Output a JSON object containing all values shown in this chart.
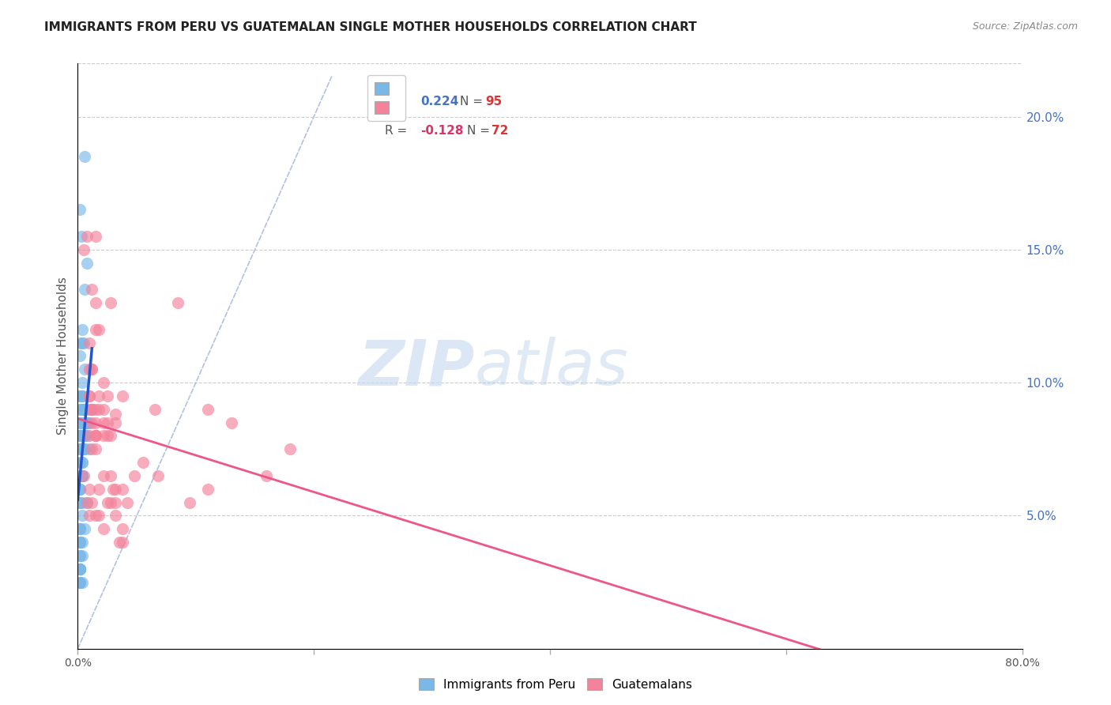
{
  "title": "IMMIGRANTS FROM PERU VS GUATEMALAN SINGLE MOTHER HOUSEHOLDS CORRELATION CHART",
  "source": "Source: ZipAtlas.com",
  "ylabel": "Single Mother Households",
  "right_ytick_vals": [
    0.05,
    0.1,
    0.15,
    0.2
  ],
  "peru_color": "#7ab8e8",
  "guatemala_color": "#f4829a",
  "peru_line_color": "#2255cc",
  "guatemala_line_color": "#ee5588",
  "diag_line_color": "#aabbdd",
  "watermark_zip": "ZIP",
  "watermark_atlas": "atlas",
  "xlim": [
    0.0,
    0.8
  ],
  "ylim": [
    0.0,
    0.22
  ],
  "peru_scatter_x": [
    0.002,
    0.005,
    0.003,
    0.006,
    0.004,
    0.007,
    0.002,
    0.004,
    0.006,
    0.008,
    0.01,
    0.006,
    0.004,
    0.006,
    0.002,
    0.008,
    0.004,
    0.006,
    0.01,
    0.002,
    0.004,
    0.002,
    0.004,
    0.002,
    0.006,
    0.004,
    0.008,
    0.006,
    0.002,
    0.002,
    0.002,
    0.004,
    0.002,
    0.004,
    0.002,
    0.002,
    0.002,
    0.004,
    0.002,
    0.002,
    0.004,
    0.002,
    0.002,
    0.004,
    0.002,
    0.006,
    0.004,
    0.002,
    0.004,
    0.008,
    0.006,
    0.004,
    0.01,
    0.006,
    0.008,
    0.004,
    0.002,
    0.004,
    0.006,
    0.002,
    0.004,
    0.002,
    0.004,
    0.002,
    0.002,
    0.004,
    0.002,
    0.002,
    0.004,
    0.002,
    0.002,
    0.008,
    0.002,
    0.002,
    0.004,
    0.006,
    0.004,
    0.002,
    0.002,
    0.006,
    0.004,
    0.002,
    0.002,
    0.004,
    0.004,
    0.002,
    0.002,
    0.002,
    0.006,
    0.004,
    0.002,
    0.002,
    0.002,
    0.002,
    0.002
  ],
  "peru_scatter_y": [
    0.085,
    0.115,
    0.155,
    0.105,
    0.095,
    0.085,
    0.095,
    0.115,
    0.09,
    0.08,
    0.085,
    0.09,
    0.095,
    0.08,
    0.075,
    0.145,
    0.08,
    0.135,
    0.09,
    0.085,
    0.12,
    0.165,
    0.08,
    0.11,
    0.185,
    0.09,
    0.085,
    0.08,
    0.095,
    0.115,
    0.08,
    0.095,
    0.09,
    0.085,
    0.055,
    0.06,
    0.04,
    0.075,
    0.075,
    0.055,
    0.1,
    0.08,
    0.08,
    0.075,
    0.08,
    0.08,
    0.075,
    0.08,
    0.07,
    0.085,
    0.075,
    0.065,
    0.075,
    0.085,
    0.085,
    0.065,
    0.06,
    0.065,
    0.045,
    0.045,
    0.05,
    0.06,
    0.04,
    0.04,
    0.025,
    0.035,
    0.04,
    0.045,
    0.025,
    0.025,
    0.03,
    0.055,
    0.035,
    0.035,
    0.065,
    0.075,
    0.055,
    0.03,
    0.03,
    0.09,
    0.08,
    0.03,
    0.045,
    0.07,
    0.075,
    0.04,
    0.025,
    0.03,
    0.09,
    0.08,
    0.07,
    0.03,
    0.065,
    0.09,
    0.08
  ],
  "guatemala_scatter_x": [
    0.005,
    0.008,
    0.012,
    0.01,
    0.015,
    0.012,
    0.018,
    0.022,
    0.025,
    0.028,
    0.032,
    0.038,
    0.065,
    0.085,
    0.11,
    0.015,
    0.012,
    0.01,
    0.018,
    0.015,
    0.015,
    0.01,
    0.012,
    0.015,
    0.022,
    0.025,
    0.012,
    0.015,
    0.012,
    0.025,
    0.032,
    0.028,
    0.022,
    0.022,
    0.018,
    0.015,
    0.012,
    0.01,
    0.13,
    0.16,
    0.18,
    0.095,
    0.11,
    0.048,
    0.068,
    0.055,
    0.038,
    0.042,
    0.028,
    0.032,
    0.038,
    0.022,
    0.018,
    0.015,
    0.012,
    0.01,
    0.01,
    0.008,
    0.005,
    0.01,
    0.012,
    0.015,
    0.015,
    0.018,
    0.022,
    0.025,
    0.028,
    0.032,
    0.03,
    0.032,
    0.035,
    0.038
  ],
  "guatemala_scatter_y": [
    0.15,
    0.155,
    0.09,
    0.105,
    0.155,
    0.135,
    0.12,
    0.1,
    0.095,
    0.13,
    0.085,
    0.095,
    0.09,
    0.13,
    0.09,
    0.13,
    0.105,
    0.095,
    0.09,
    0.12,
    0.09,
    0.115,
    0.105,
    0.075,
    0.08,
    0.08,
    0.09,
    0.08,
    0.085,
    0.085,
    0.088,
    0.08,
    0.085,
    0.09,
    0.095,
    0.085,
    0.09,
    0.095,
    0.085,
    0.065,
    0.075,
    0.055,
    0.06,
    0.065,
    0.065,
    0.07,
    0.06,
    0.055,
    0.055,
    0.06,
    0.045,
    0.045,
    0.05,
    0.05,
    0.055,
    0.06,
    0.05,
    0.055,
    0.065,
    0.08,
    0.075,
    0.08,
    0.08,
    0.06,
    0.065,
    0.055,
    0.065,
    0.05,
    0.06,
    0.055,
    0.04,
    0.04
  ],
  "background_color": "#ffffff"
}
